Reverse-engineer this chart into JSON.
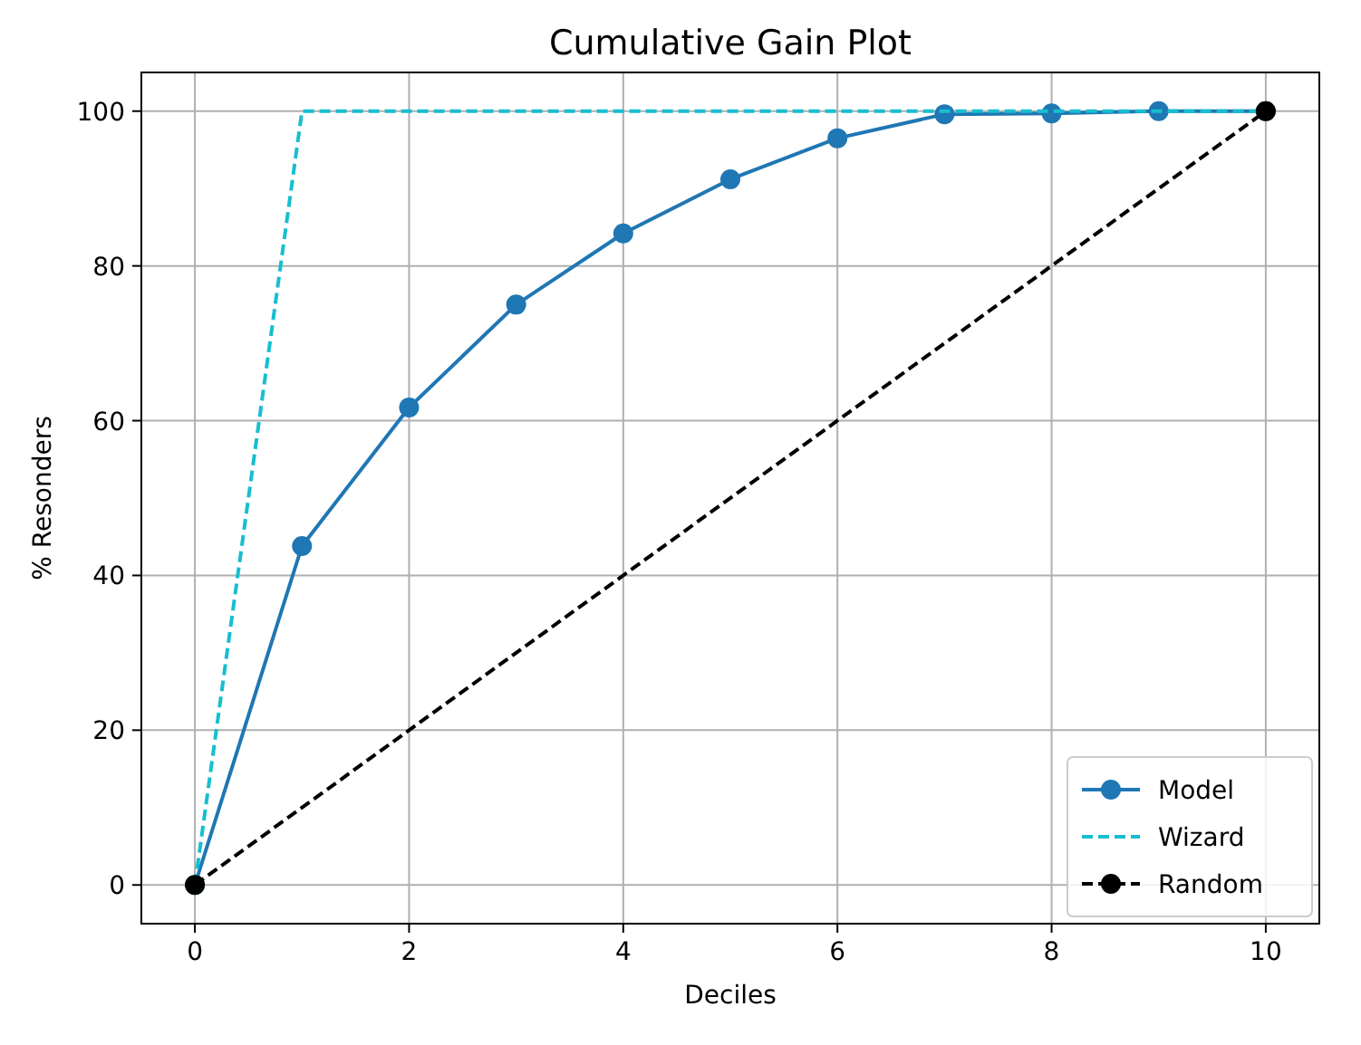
{
  "chart_data": {
    "type": "line",
    "title": "Cumulative Gain Plot",
    "xlabel": "Deciles",
    "ylabel": "% Resonders",
    "xlim": [
      -0.5,
      10.5
    ],
    "ylim": [
      -5,
      105
    ],
    "xticks": [
      0,
      2,
      4,
      6,
      8,
      10
    ],
    "yticks": [
      0,
      20,
      40,
      60,
      80,
      100
    ],
    "grid": true,
    "legend": "bottom right",
    "series": [
      {
        "name": "Model",
        "color": "#1f77b4",
        "marker": "circle",
        "line_style": "solid",
        "x": [
          0,
          1,
          2,
          3,
          4,
          5,
          6,
          7,
          8,
          9,
          10
        ],
        "values": [
          0,
          43.8,
          61.7,
          75,
          84.2,
          91.2,
          96.5,
          99.6,
          99.7,
          100,
          100
        ]
      },
      {
        "name": "Wizard",
        "color": "#17becf",
        "marker": "none",
        "line_style": "dashed",
        "x": [
          0,
          1,
          10
        ],
        "values": [
          0,
          100,
          100
        ]
      },
      {
        "name": "Random",
        "color": "#000000",
        "marker": "circle",
        "line_style": "dashed",
        "x": [
          0,
          10
        ],
        "values": [
          0,
          100
        ]
      }
    ]
  }
}
